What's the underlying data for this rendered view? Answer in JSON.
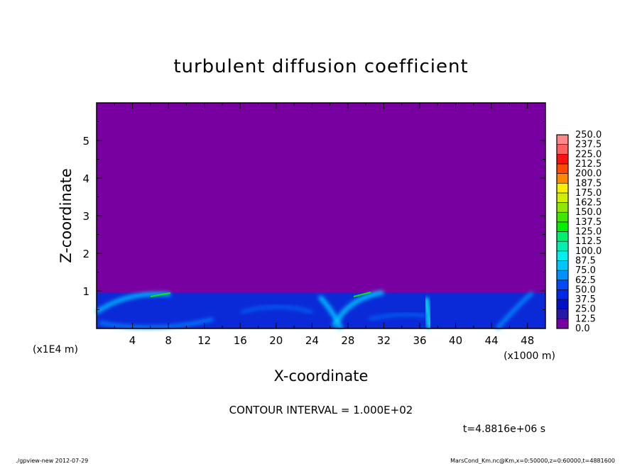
{
  "chart_data": {
    "type": "heatmap",
    "title": "turbulent diffusion coefficient",
    "xlabel": "X-coordinate",
    "ylabel": "Z-coordinate",
    "x_unit": "(x1000 m)",
    "y_unit": "(x1E4 m)",
    "xlim": [
      0,
      50
    ],
    "ylim": [
      0,
      6
    ],
    "x_ticks": [
      4,
      8,
      12,
      16,
      20,
      24,
      28,
      32,
      36,
      40,
      44,
      48
    ],
    "y_ticks": [
      1,
      2,
      3,
      4,
      5
    ],
    "colorbar": {
      "levels": [
        "0.0",
        "12.5",
        "25.0",
        "37.5",
        "50.0",
        "62.5",
        "75.0",
        "87.5",
        "100.0",
        "112.5",
        "125.0",
        "137.5",
        "150.0",
        "162.5",
        "175.0",
        "187.5",
        "200.0",
        "212.5",
        "225.0",
        "237.5",
        "250.0"
      ],
      "colors": [
        "#7800a0",
        "#2818a8",
        "#0010c8",
        "#0028e8",
        "#0048f8",
        "#0068f8",
        "#0090ff",
        "#00c8ff",
        "#00f0f0",
        "#00f0b0",
        "#00f070",
        "#00f000",
        "#40e800",
        "#90e800",
        "#d0f000",
        "#f8f000",
        "#f8c000",
        "#ff8800",
        "#ff4800",
        "#ff1010",
        "#ff6060",
        "#ff8888"
      ]
    },
    "field_summary": {
      "background_value": 0.0,
      "boundary_layer_top_z": 0.95,
      "boundary_layer_values": "12.5-100"
    },
    "contour_interval": "CONTOUR INTERVAL = 1.000E+02",
    "time_label": "t=4.8816e+06 s"
  },
  "footer": {
    "left": "./gpview-new  2012-07-29",
    "right": "MarsCond_Km.nc@Km,x=0:50000,z=0:60000,t=4881600"
  }
}
